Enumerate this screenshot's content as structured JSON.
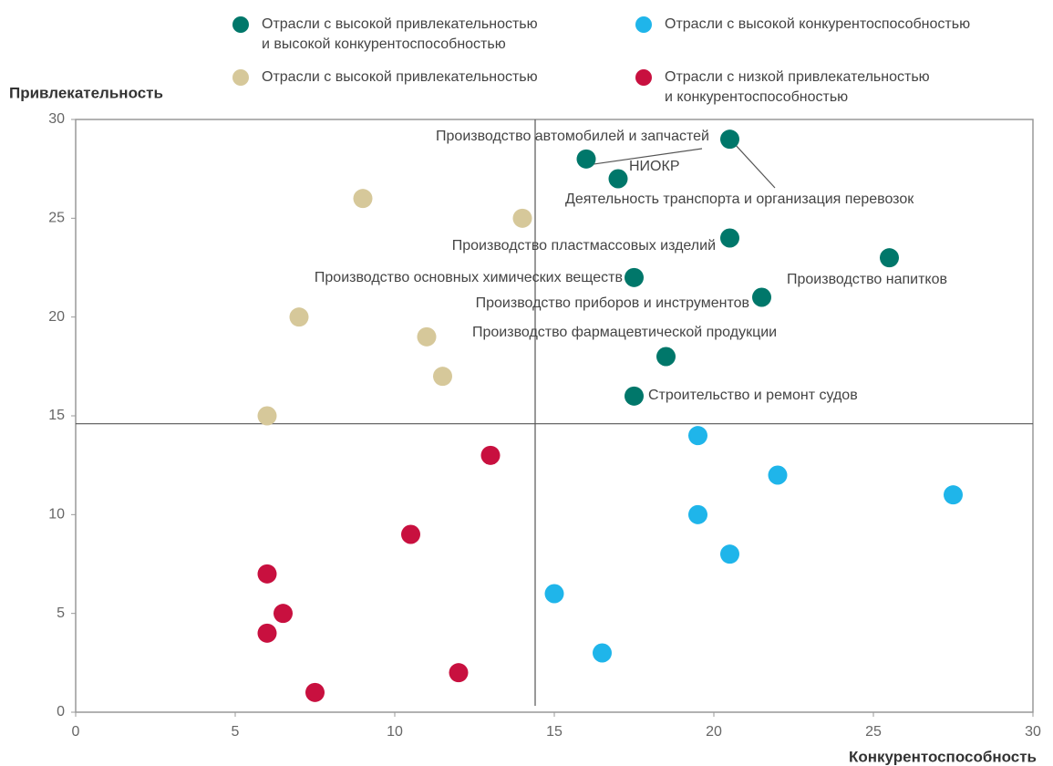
{
  "chart_data": {
    "type": "scatter",
    "y_label": "Привлекательность",
    "x_label": "Конкурентоспособность",
    "xlim": [
      0,
      30
    ],
    "ylim": [
      0,
      30
    ],
    "xticks": [
      0,
      5,
      10,
      15,
      20,
      25,
      30
    ],
    "yticks": [
      0,
      5,
      10,
      15,
      20,
      25,
      30
    ],
    "dividers": {
      "x": 14.4,
      "y": 14.6
    },
    "series": [
      {
        "name": "Отрасли с высокой привлекательностью\nи высокой конкурентоспособностью",
        "color": "#00776a",
        "x": [
          16,
          17,
          20.5,
          20.5,
          17.5,
          25.5,
          21.5,
          18.5,
          17.5
        ],
        "values": [
          28,
          27,
          29,
          24,
          22,
          23,
          21,
          18,
          16
        ],
        "labels": [
          "Производство автомобилей и запчастей",
          "НИОКР",
          "Деятельность транспорта и организация перевозок",
          "Производство пластмассовых изделий",
          "Производство основных химических веществ",
          "Производство напитков",
          "Производство приборов и инструментов",
          "Производство фармацевтической продукции",
          "Строительство и ремонт судов"
        ]
      },
      {
        "name": "Отрасли с высокой конкурентоспособностью",
        "color": "#1fb5ea",
        "x": [
          19.5,
          22,
          27.5,
          19.5,
          20.5,
          15,
          16.5
        ],
        "values": [
          14,
          12,
          11,
          10,
          8,
          6,
          3
        ]
      },
      {
        "name": "Отрасли с высокой привлекательностью",
        "color": "#d6c89a",
        "x": [
          9,
          14,
          7,
          11,
          11.5,
          6
        ],
        "values": [
          26,
          25,
          20,
          19,
          17,
          15
        ]
      },
      {
        "name": "Отрасли с низкой привлекательностью\nи конкурентоспособностью",
        "color": "#c8103f",
        "x": [
          13,
          10.5,
          6,
          6.5,
          6,
          7.5,
          12
        ],
        "values": [
          13,
          9,
          7,
          5,
          4,
          1,
          2
        ]
      }
    ]
  }
}
